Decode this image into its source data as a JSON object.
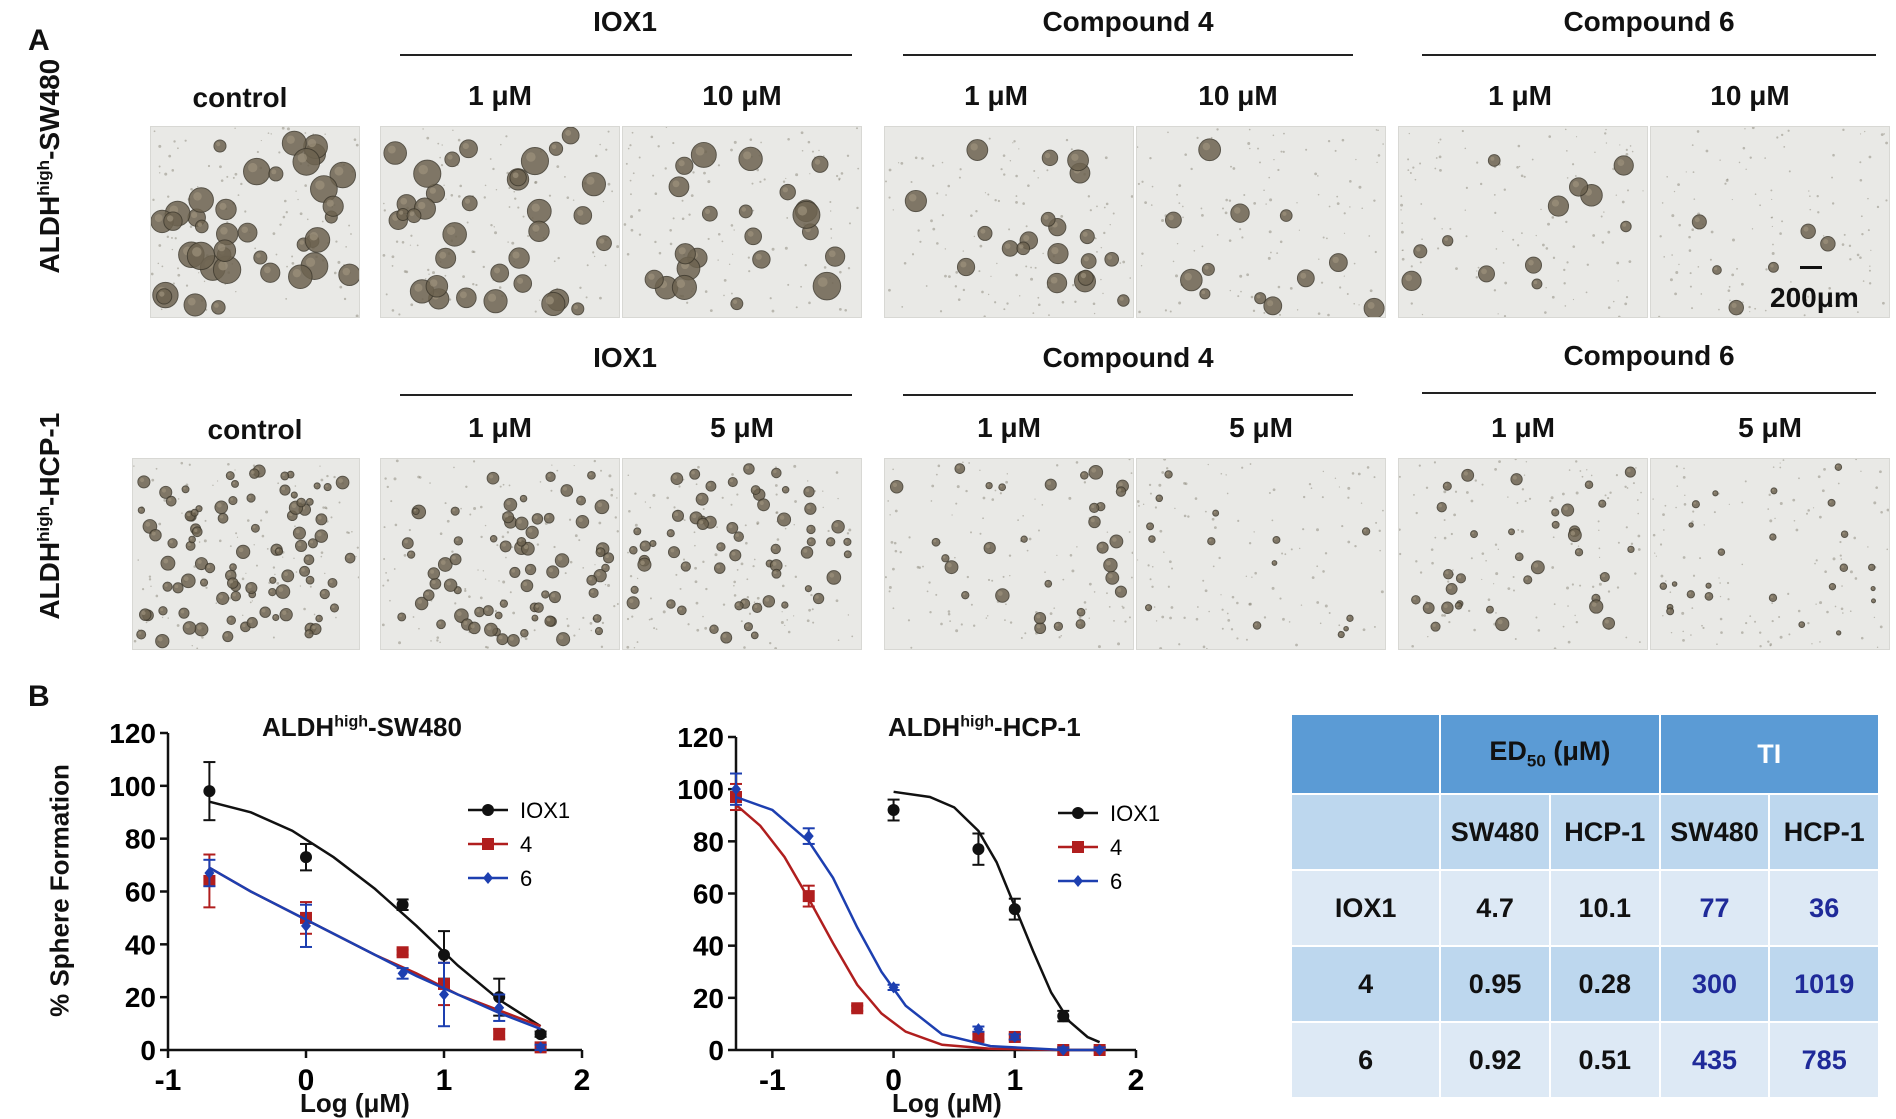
{
  "panel_a": {
    "letter": "A",
    "row1": {
      "label_main": "ALDH",
      "label_sup": "high",
      "label_tail": "-SW480",
      "groups": [
        {
          "title": "IOX1",
          "concs": [
            "1 μM",
            "10 μM"
          ]
        },
        {
          "title": "Compound 4",
          "concs": [
            "1 μM",
            "10 μM"
          ]
        },
        {
          "title": "Compound 6",
          "concs": [
            "1 μM",
            "10 μM"
          ]
        }
      ],
      "control": "control",
      "scale_bar": "200μm"
    },
    "row2": {
      "label_main": "ALDH",
      "label_sup": "high",
      "label_tail": "-HCP-1",
      "groups": [
        {
          "title": "IOX1",
          "concs": [
            "1 μM",
            "5 μM"
          ]
        },
        {
          "title": "Compound 4",
          "concs": [
            "1 μM",
            "5 μM"
          ]
        },
        {
          "title": "Compound 6",
          "concs": [
            "1 μM",
            "5 μM"
          ]
        }
      ],
      "control": "control"
    }
  },
  "panel_b": {
    "letter": "B",
    "ylabel": "% Sphere Formation",
    "xlabel": "Log (μM)"
  },
  "chart_data": [
    {
      "type": "scatter",
      "title_main": "ALDH",
      "title_sup": "high",
      "title_tail": "-SW480",
      "xlabel": "Log (μM)",
      "ylabel": "% Sphere Formation",
      "xlim": [
        -1,
        2
      ],
      "ylim": [
        0,
        120
      ],
      "xticks": [
        -1,
        0,
        1,
        2
      ],
      "yticks": [
        0,
        20,
        40,
        60,
        80,
        100,
        120
      ],
      "legend_position": "right",
      "series": [
        {
          "name": "IOX1",
          "color": "#111111",
          "marker": "circle",
          "x": [
            -0.7,
            0,
            0.7,
            1,
            1.4,
            1.7
          ],
          "y": [
            98,
            73,
            55,
            36,
            20,
            6
          ],
          "err": [
            11,
            5,
            2,
            9,
            7,
            1
          ],
          "curve": [
            [
              -0.7,
              94
            ],
            [
              -0.4,
              90
            ],
            [
              -0.1,
              83
            ],
            [
              0.2,
              73
            ],
            [
              0.5,
              61
            ],
            [
              0.8,
              47
            ],
            [
              1.1,
              32
            ],
            [
              1.4,
              19
            ],
            [
              1.7,
              9
            ]
          ]
        },
        {
          "name": "4",
          "color": "#b01e1e",
          "marker": "square",
          "x": [
            -0.7,
            0,
            0.7,
            1,
            1.4,
            1.7
          ],
          "y": [
            64,
            50,
            37,
            25,
            6,
            1
          ],
          "err": [
            10,
            6,
            1,
            8,
            2,
            1
          ],
          "curve": [
            [
              -0.7,
              69
            ],
            [
              -0.4,
              60
            ],
            [
              -0.1,
              52
            ],
            [
              0.2,
              44
            ],
            [
              0.5,
              36
            ],
            [
              0.8,
              29
            ],
            [
              1.1,
              21
            ],
            [
              1.4,
              15
            ],
            [
              1.7,
              9
            ]
          ]
        },
        {
          "name": "6",
          "color": "#1d3fb0",
          "marker": "diamond",
          "x": [
            -0.7,
            0,
            0.7,
            1,
            1.4,
            1.7
          ],
          "y": [
            67,
            47,
            29,
            21,
            16,
            1
          ],
          "err": [
            5,
            8,
            2,
            12,
            5,
            1
          ],
          "curve": [
            [
              -0.7,
              69
            ],
            [
              -0.4,
              60
            ],
            [
              -0.1,
              52
            ],
            [
              0.2,
              44
            ],
            [
              0.5,
              36
            ],
            [
              0.8,
              28
            ],
            [
              1.1,
              21
            ],
            [
              1.4,
              14
            ],
            [
              1.7,
              8
            ]
          ]
        }
      ]
    },
    {
      "type": "scatter",
      "title_main": "ALDH",
      "title_sup": "high",
      "title_tail": "-HCP-1",
      "xlabel": "Log (μM)",
      "ylabel": "",
      "xlim": [
        -1.3,
        2
      ],
      "ylim": [
        0,
        120
      ],
      "xticks": [
        -1,
        0,
        1,
        2
      ],
      "yticks": [
        0,
        20,
        40,
        60,
        80,
        100,
        120
      ],
      "legend_position": "right",
      "series": [
        {
          "name": "IOX1",
          "color": "#111111",
          "marker": "circle",
          "x": [
            0,
            0.7,
            1,
            1.4,
            1.7
          ],
          "y": [
            92,
            77,
            54,
            13,
            0
          ],
          "err": [
            4,
            6,
            4,
            2,
            1
          ],
          "curve": [
            [
              0,
              99
            ],
            [
              0.3,
              97
            ],
            [
              0.5,
              93
            ],
            [
              0.7,
              84
            ],
            [
              0.85,
              72
            ],
            [
              1,
              55
            ],
            [
              1.15,
              38
            ],
            [
              1.3,
              22
            ],
            [
              1.45,
              11
            ],
            [
              1.6,
              5
            ],
            [
              1.7,
              3
            ]
          ]
        },
        {
          "name": "4",
          "color": "#b01e1e",
          "marker": "square",
          "x": [
            -1.3,
            -0.7,
            -0.3,
            0.7,
            1,
            1.4,
            1.7
          ],
          "y": [
            97,
            59,
            16,
            5,
            5,
            0,
            0
          ],
          "err": [
            5,
            4,
            1,
            1,
            1,
            1,
            1
          ],
          "curve": [
            [
              -1.3,
              94
            ],
            [
              -1.1,
              86
            ],
            [
              -0.9,
              74
            ],
            [
              -0.7,
              58
            ],
            [
              -0.5,
              41
            ],
            [
              -0.3,
              25
            ],
            [
              -0.1,
              14
            ],
            [
              0.1,
              7
            ],
            [
              0.4,
              2
            ],
            [
              0.8,
              0.5
            ],
            [
              1.4,
              0
            ],
            [
              1.7,
              0
            ]
          ]
        },
        {
          "name": "6",
          "color": "#1d3fb0",
          "marker": "diamond",
          "x": [
            -1.3,
            -0.7,
            0,
            0.7,
            1,
            1.4,
            1.7
          ],
          "y": [
            100,
            82,
            24,
            8,
            5,
            0,
            0
          ],
          "err": [
            6,
            3,
            1,
            1,
            1,
            1,
            1
          ],
          "curve": [
            [
              -1.3,
              97
            ],
            [
              -1.0,
              92
            ],
            [
              -0.7,
              80
            ],
            [
              -0.5,
              66
            ],
            [
              -0.3,
              47
            ],
            [
              -0.1,
              30
            ],
            [
              0.1,
              17
            ],
            [
              0.4,
              6
            ],
            [
              0.8,
              1.5
            ],
            [
              1.4,
              0
            ],
            [
              1.7,
              0
            ]
          ]
        }
      ]
    }
  ],
  "table": {
    "header1": {
      "blank": "",
      "ed50_main": "ED",
      "ed50_sub": "50",
      "ed50_tail": " (μM)",
      "ti": "TI"
    },
    "header2": [
      "",
      "SW480",
      "HCP-1",
      "SW480",
      "HCP-1"
    ],
    "rows": [
      {
        "name": "IOX1",
        "ed_sw480": "4.7",
        "ed_hcp1": "10.1",
        "ti_sw480": "77",
        "ti_hcp1": "36"
      },
      {
        "name": "4",
        "ed_sw480": "0.95",
        "ed_hcp1": "0.28",
        "ti_sw480": "300",
        "ti_hcp1": "1019"
      },
      {
        "name": "6",
        "ed_sw480": "0.92",
        "ed_hcp1": "0.51",
        "ti_sw480": "435",
        "ti_hcp1": "785"
      }
    ]
  }
}
